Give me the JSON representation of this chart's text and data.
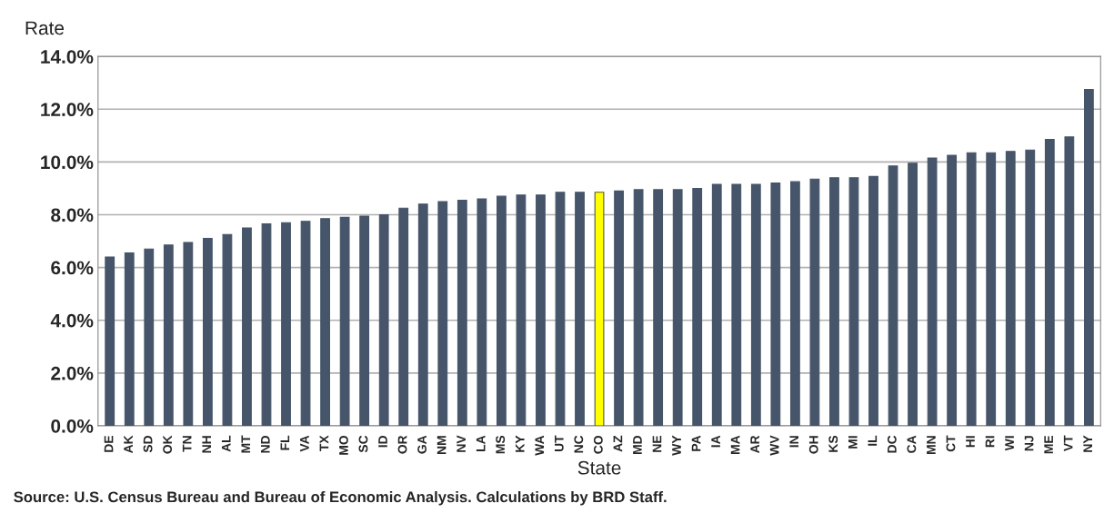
{
  "chart_data": {
    "type": "bar",
    "ylabel": "Rate",
    "xlabel": "State",
    "categories": [
      "DE",
      "AK",
      "SD",
      "OK",
      "TN",
      "NH",
      "AL",
      "MT",
      "ND",
      "FL",
      "VA",
      "TX",
      "MO",
      "SC",
      "ID",
      "OR",
      "GA",
      "NM",
      "NV",
      "LA",
      "MS",
      "KY",
      "WA",
      "UT",
      "NC",
      "CO",
      "AZ",
      "MD",
      "NE",
      "WY",
      "PA",
      "IA",
      "MA",
      "AR",
      "WV",
      "IN",
      "OH",
      "KS",
      "MI",
      "IL",
      "DC",
      "CA",
      "MN",
      "CT",
      "HI",
      "RI",
      "WI",
      "NJ",
      "ME",
      "VT",
      "NY"
    ],
    "values": [
      6.4,
      6.55,
      6.7,
      6.85,
      6.95,
      7.1,
      7.25,
      7.5,
      7.65,
      7.7,
      7.75,
      7.85,
      7.9,
      7.95,
      8.0,
      8.25,
      8.4,
      8.5,
      8.55,
      8.6,
      8.7,
      8.75,
      8.75,
      8.85,
      8.85,
      8.85,
      8.9,
      8.95,
      8.95,
      8.95,
      9.0,
      9.15,
      9.15,
      9.15,
      9.2,
      9.25,
      9.35,
      9.4,
      9.4,
      9.45,
      9.85,
      9.95,
      10.15,
      10.25,
      10.35,
      10.35,
      10.4,
      10.45,
      10.85,
      10.95,
      12.75
    ],
    "colors": [
      "#465569",
      "#465569",
      "#465569",
      "#465569",
      "#465569",
      "#465569",
      "#465569",
      "#465569",
      "#465569",
      "#465569",
      "#465569",
      "#465569",
      "#465569",
      "#465569",
      "#465569",
      "#465569",
      "#465569",
      "#465569",
      "#465569",
      "#465569",
      "#465569",
      "#465569",
      "#465569",
      "#465569",
      "#465569",
      "#ffff00",
      "#465569",
      "#465569",
      "#465569",
      "#465569",
      "#465569",
      "#465569",
      "#465569",
      "#465569",
      "#465569",
      "#465569",
      "#465569",
      "#465569",
      "#465569",
      "#465569",
      "#465569",
      "#465569",
      "#465569",
      "#465569",
      "#465569",
      "#465569",
      "#465569",
      "#465569",
      "#465569",
      "#465569",
      "#465569"
    ],
    "ylim": [
      0,
      14
    ],
    "yticks": [
      {
        "value": 0,
        "label": "0.0%"
      },
      {
        "value": 2,
        "label": "2.0%"
      },
      {
        "value": 4,
        "label": "4.0%"
      },
      {
        "value": 6,
        "label": "6.0%"
      },
      {
        "value": 8,
        "label": "8.0%"
      },
      {
        "value": 10,
        "label": "10.0%"
      },
      {
        "value": 12,
        "label": "12.0%"
      },
      {
        "value": 14,
        "label": "14.0%"
      }
    ],
    "grid": "y",
    "annotations": [
      "Source: U.S. Census Bureau and Bureau of Economic Analysis. Calculations by BRD Staff."
    ]
  }
}
